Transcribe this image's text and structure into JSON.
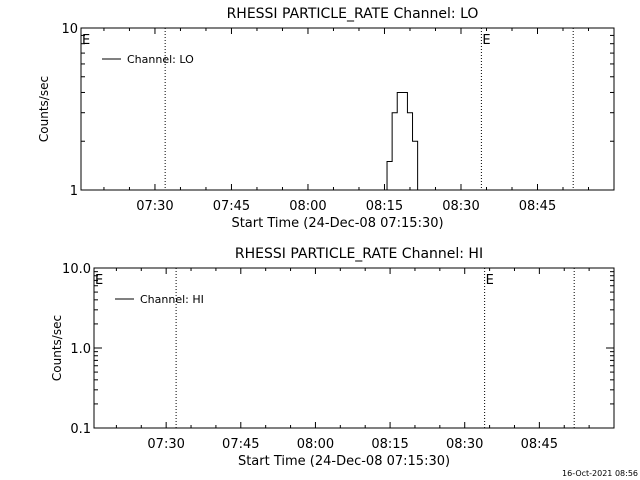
{
  "chart_data": [
    {
      "type": "line",
      "title": "RHESSI PARTICLE_RATE Channel: LO",
      "xlabel": "Start Time (24-Dec-08 07:15:30)",
      "ylabel": "Counts/sec",
      "yscale": "log",
      "ylim": [
        1,
        10
      ],
      "y_ticks": [
        {
          "v": 1,
          "label": "1"
        },
        {
          "v": 10,
          "label": "10"
        }
      ],
      "xlim": [
        "07:15:30",
        "09:00:00"
      ],
      "x_ticks": [
        "07:30",
        "07:45",
        "08:00",
        "08:15",
        "08:30",
        "08:45"
      ],
      "vlines": [
        {
          "time": "07:15:30",
          "label": "E"
        },
        {
          "time": "07:32:00",
          "label": ""
        },
        {
          "time": "08:34:00",
          "label": "E"
        },
        {
          "time": "08:52:00",
          "label": ""
        }
      ],
      "legend": {
        "entry": "Channel: LO",
        "placement": "top-left"
      },
      "series": [
        {
          "name": "Channel: LO",
          "step": true,
          "x": [
            "08:14:30",
            "08:15:30",
            "08:16:30",
            "08:17:30",
            "08:18:30",
            "08:19:30",
            "08:20:30",
            "08:21:30",
            "08:22:30"
          ],
          "values": [
            1,
            1.5,
            3,
            4,
            4,
            3,
            2,
            1,
            1
          ]
        }
      ]
    },
    {
      "type": "line",
      "title": "RHESSI PARTICLE_RATE Channel: HI",
      "xlabel": "Start Time (24-Dec-08 07:15:30)",
      "ylabel": "Counts/sec",
      "yscale": "log",
      "ylim": [
        0.1,
        10
      ],
      "y_ticks": [
        {
          "v": 0.1,
          "label": "0.1"
        },
        {
          "v": 1,
          "label": "1.0"
        },
        {
          "v": 10,
          "label": "10.0"
        }
      ],
      "xlim": [
        "07:15:30",
        "09:00:00"
      ],
      "x_ticks": [
        "07:30",
        "07:45",
        "08:00",
        "08:15",
        "08:30",
        "08:45"
      ],
      "vlines": [
        {
          "time": "07:15:30",
          "label": "E"
        },
        {
          "time": "07:32:00",
          "label": ""
        },
        {
          "time": "08:34:00",
          "label": "E"
        },
        {
          "time": "08:52:00",
          "label": ""
        }
      ],
      "legend": {
        "entry": "Channel: HI",
        "placement": "top-left"
      },
      "series": [
        {
          "name": "Channel: HI",
          "step": true,
          "x": [],
          "values": []
        }
      ]
    }
  ],
  "footer": {
    "timestamp": "16-Oct-2021 08:56"
  }
}
